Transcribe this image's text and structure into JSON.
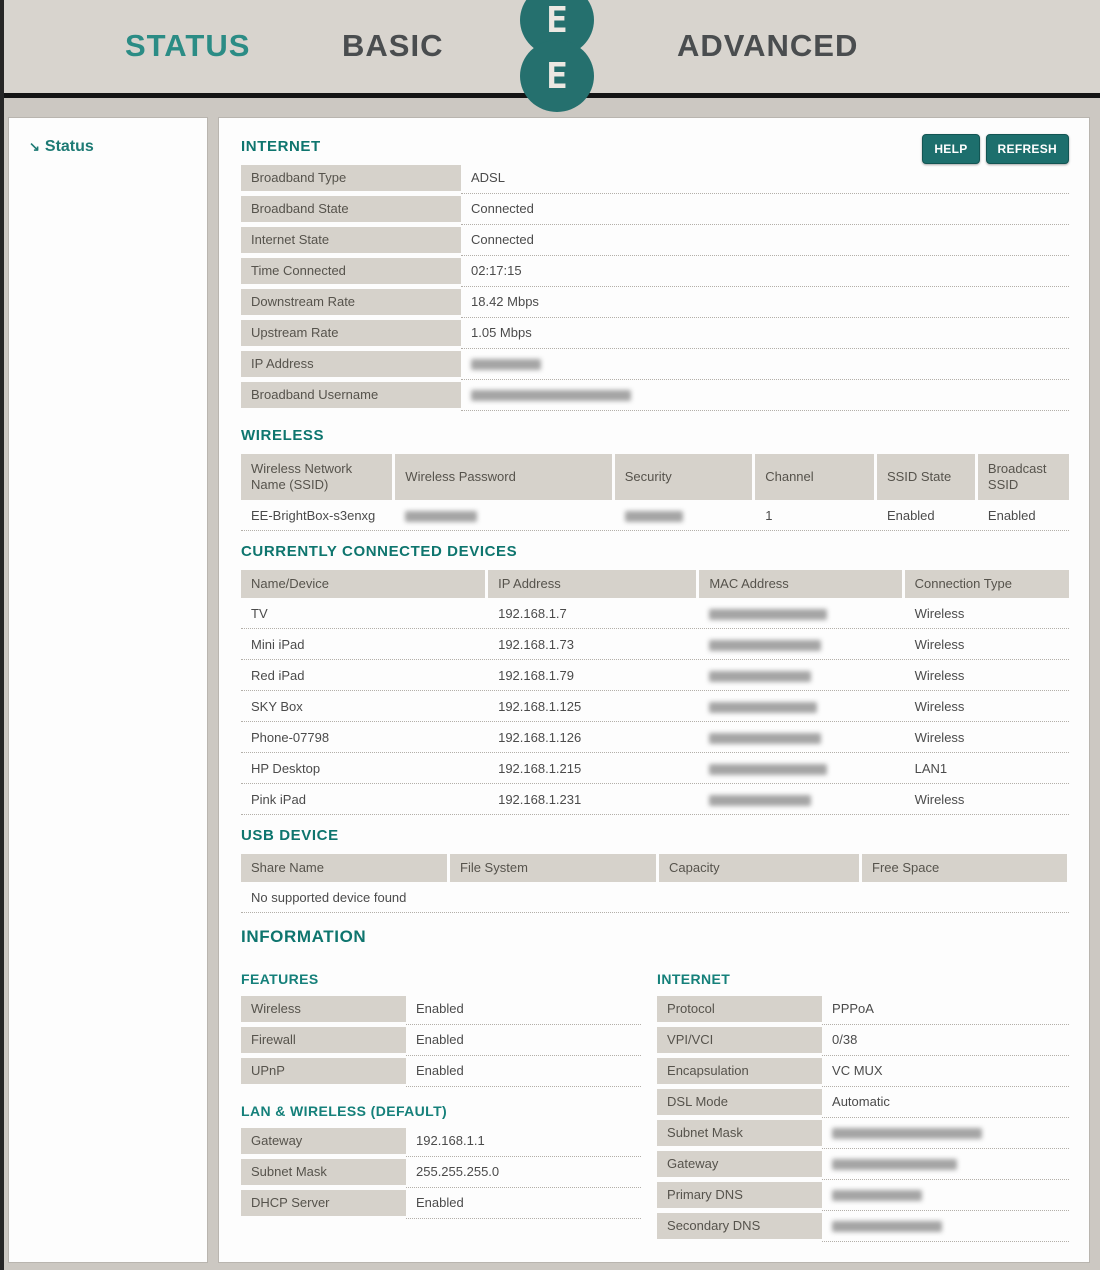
{
  "header": {
    "nav": [
      {
        "label": "STATUS",
        "active": true
      },
      {
        "label": "BASIC",
        "active": false
      },
      {
        "label": "ADVANCED",
        "active": false
      }
    ],
    "logo_letter_top": "E",
    "logo_letter_bottom": "E"
  },
  "sidebar": {
    "items": [
      {
        "label": "Status",
        "arrow": "↘"
      }
    ]
  },
  "internet": {
    "title": "INTERNET",
    "help_label": "HELP",
    "refresh_label": "REFRESH",
    "rows": [
      {
        "label": "Broadband Type",
        "value": "ADSL",
        "redacted": false
      },
      {
        "label": "Broadband State",
        "value": "Connected",
        "redacted": false
      },
      {
        "label": "Internet State",
        "value": "Connected",
        "redacted": false
      },
      {
        "label": "Time Connected",
        "value": "02:17:15",
        "redacted": false
      },
      {
        "label": "Downstream Rate",
        "value": "18.42 Mbps",
        "redacted": false
      },
      {
        "label": "Upstream Rate",
        "value": "1.05 Mbps",
        "redacted": false
      },
      {
        "label": "IP Address",
        "value": "",
        "redacted": true
      },
      {
        "label": "Broadband Username",
        "value": "",
        "redacted": true
      }
    ]
  },
  "wireless": {
    "title": "WIRELESS",
    "columns": [
      "Wireless Network Name (SSID)",
      "Wireless Password",
      "Security",
      "Channel",
      "SSID State",
      "Broadcast SSID"
    ],
    "row": {
      "ssid": "EE-BrightBox-s3enxg",
      "password_redacted": true,
      "security_redacted": true,
      "channel": "1",
      "ssid_state": "Enabled",
      "broadcast_ssid": "Enabled"
    }
  },
  "devices": {
    "title": "CURRENTLY CONNECTED DEVICES",
    "columns": [
      "Name/Device",
      "IP Address",
      "MAC Address",
      "Connection Type"
    ],
    "rows": [
      {
        "name": "TV",
        "ip": "192.168.1.7",
        "mac_redacted": true,
        "connection": "Wireless"
      },
      {
        "name": "Mini iPad",
        "ip": "192.168.1.73",
        "mac_redacted": true,
        "connection": "Wireless"
      },
      {
        "name": "Red iPad",
        "ip": "192.168.1.79",
        "mac_redacted": true,
        "connection": "Wireless"
      },
      {
        "name": "SKY Box",
        "ip": "192.168.1.125",
        "mac_redacted": true,
        "connection": "Wireless"
      },
      {
        "name": "Phone-07798",
        "ip": "192.168.1.126",
        "mac_redacted": true,
        "connection": "Wireless"
      },
      {
        "name": "HP Desktop",
        "ip": "192.168.1.215",
        "mac_redacted": true,
        "connection": "LAN1"
      },
      {
        "name": "Pink iPad",
        "ip": "192.168.1.231",
        "mac_redacted": true,
        "connection": "Wireless"
      }
    ]
  },
  "usb": {
    "title": "USB DEVICE",
    "columns": [
      "Share Name",
      "File System",
      "Capacity",
      "Free Space"
    ],
    "empty_message": "No supported device found"
  },
  "information": {
    "title": "INFORMATION",
    "features": {
      "title": "FEATURES",
      "rows": [
        {
          "label": "Wireless",
          "value": "Enabled"
        },
        {
          "label": "Firewall",
          "value": "Enabled"
        },
        {
          "label": "UPnP",
          "value": "Enabled"
        }
      ]
    },
    "lan": {
      "title": "LAN & WIRELESS (DEFAULT)",
      "rows": [
        {
          "label": "Gateway",
          "value": "192.168.1.1"
        },
        {
          "label": "Subnet Mask",
          "value": "255.255.255.0"
        },
        {
          "label": "DHCP Server",
          "value": "Enabled"
        }
      ]
    },
    "internet": {
      "title": "INTERNET",
      "rows": [
        {
          "label": "Protocol",
          "value": "PPPoA",
          "redacted": false
        },
        {
          "label": "VPI/VCI",
          "value": "0/38",
          "redacted": false
        },
        {
          "label": "Encapsulation",
          "value": "VC MUX",
          "redacted": false
        },
        {
          "label": "DSL Mode",
          "value": "Automatic",
          "redacted": false
        },
        {
          "label": "Subnet Mask",
          "value": "",
          "redacted": true
        },
        {
          "label": "Gateway",
          "value": "",
          "redacted": true
        },
        {
          "label": "Primary DNS",
          "value": "",
          "redacted": true
        },
        {
          "label": "Secondary DNS",
          "value": "",
          "redacted": true
        }
      ]
    }
  },
  "colors": {
    "teal_brand": "#1d6f6d",
    "teal_heading": "#0e756e",
    "nav_active": "#2b8c85",
    "nav_inactive": "#4a4d4f",
    "label_cell_bg": "#d6d2cb",
    "page_bg": "#ccc8c2"
  }
}
